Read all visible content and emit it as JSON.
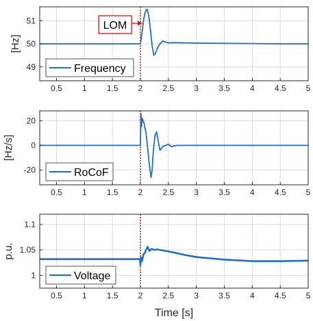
{
  "colors": {
    "series": "#1f6fc7",
    "event_line": "#cc0000",
    "annotation": "#dd1111",
    "grid": "#dcdcdc",
    "axes": "#262626"
  },
  "chart_data": [
    {
      "type": "line",
      "ylabel": "[Hz]",
      "xlim": [
        0.2,
        5
      ],
      "ylim": [
        48.4,
        51.6
      ],
      "xticks": [
        "0.5",
        "1",
        "1.5",
        "2",
        "2.5",
        "3",
        "3.5",
        "4",
        "4.5",
        "5"
      ],
      "yticks": [
        "49",
        "50",
        "51"
      ],
      "grid": true,
      "legend": {
        "entry": "Frequency",
        "placement": "bottom-left"
      },
      "annotation": {
        "text": "LOM",
        "x": 2.0,
        "y": 51.0
      },
      "event_line_x": 2.0,
      "series": [
        {
          "name": "Frequency",
          "x": [
            0.2,
            1.99,
            2.0,
            2.03,
            2.06,
            2.09,
            2.12,
            2.15,
            2.18,
            2.21,
            2.24,
            2.27,
            2.3,
            2.35,
            2.4,
            2.45,
            2.5,
            2.6,
            2.8,
            3.0,
            3.5,
            4.0,
            4.5,
            5.0
          ],
          "values": [
            50.0,
            50.0,
            50.0,
            50.5,
            51.1,
            51.4,
            51.5,
            51.2,
            50.6,
            49.9,
            49.5,
            49.6,
            49.8,
            50.0,
            50.12,
            50.08,
            50.04,
            50.05,
            50.04,
            50.03,
            50.02,
            50.01,
            50.0,
            50.0
          ]
        }
      ]
    },
    {
      "type": "line",
      "ylabel": "[Hz/s]",
      "xlim": [
        0.2,
        5
      ],
      "ylim": [
        -32,
        28
      ],
      "xticks": [
        "0.5",
        "1",
        "1.5",
        "2",
        "2.5",
        "3",
        "3.5",
        "4",
        "4.5",
        "5"
      ],
      "yticks": [
        "-20",
        "0",
        "20"
      ],
      "grid": true,
      "legend": {
        "entry": "RoCoF",
        "placement": "bottom-left"
      },
      "event_line_x": 2.0,
      "series": [
        {
          "name": "RoCoF",
          "x": [
            0.2,
            1.99,
            2.0,
            2.01,
            2.02,
            2.03,
            2.05,
            2.07,
            2.1,
            2.13,
            2.16,
            2.19,
            2.21,
            2.23,
            2.26,
            2.29,
            2.32,
            2.35,
            2.4,
            2.45,
            2.5,
            2.55,
            2.65,
            2.8,
            3.0,
            3.5,
            4.0,
            4.5,
            5.0
          ],
          "values": [
            0,
            0,
            0,
            26,
            15,
            22,
            20,
            17,
            10,
            -2,
            -16,
            -26,
            -20,
            -5,
            8,
            11,
            3,
            -4,
            -1,
            0,
            1,
            -1,
            0,
            0,
            0,
            0,
            0,
            0,
            0
          ]
        }
      ]
    },
    {
      "type": "line",
      "ylabel": "p.u.",
      "xlabel": "Time [s]",
      "xlim": [
        0.2,
        5
      ],
      "ylim": [
        0.975,
        1.12
      ],
      "xticks": [
        "0.5",
        "1",
        "1.5",
        "2",
        "2.5",
        "3",
        "3.5",
        "4",
        "4.5",
        "5"
      ],
      "yticks": [
        "1",
        "1.05",
        "1.1"
      ],
      "grid": true,
      "legend": {
        "entry": "Voltage",
        "placement": "bottom-left"
      },
      "event_line_x": 2.0,
      "series": [
        {
          "name": "Voltage",
          "x": [
            0.2,
            1.99,
            2.0,
            2.01,
            2.03,
            2.05,
            2.08,
            2.1,
            2.13,
            2.16,
            2.2,
            2.25,
            2.3,
            2.4,
            2.6,
            2.8,
            3.0,
            3.5,
            4.0,
            4.5,
            5.0
          ],
          "values": [
            1.032,
            1.032,
            1.02,
            1.035,
            1.028,
            1.04,
            1.045,
            1.05,
            1.056,
            1.048,
            1.052,
            1.05,
            1.051,
            1.049,
            1.045,
            1.04,
            1.036,
            1.031,
            1.028,
            1.028,
            1.029
          ]
        }
      ]
    }
  ]
}
